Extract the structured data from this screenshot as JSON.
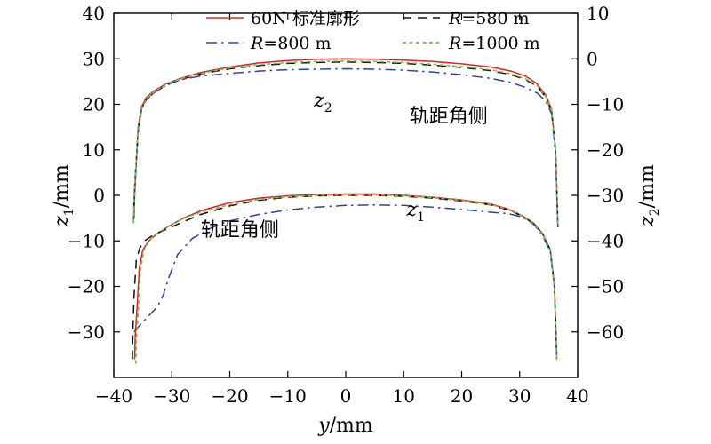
{
  "chart_data": {
    "type": "line",
    "xlabel": {
      "var": "y",
      "unit": "/mm"
    },
    "ylabel_left": {
      "var": "z",
      "sub": "1",
      "unit": "/mm"
    },
    "ylabel_right": {
      "var": "z",
      "sub": "2",
      "unit": "/mm"
    },
    "xlim": [
      -40,
      40
    ],
    "ylim_left": [
      -40,
      40
    ],
    "ylim_right": [
      -70,
      10
    ],
    "x_ticks": [
      "−40",
      "−30",
      "−20",
      "−10",
      "0",
      "10",
      "20",
      "30",
      "40"
    ],
    "y_left_ticks": [
      "−30",
      "−20",
      "−10",
      "0",
      "10",
      "20",
      "30",
      "40"
    ],
    "y_right_ticks": [
      "−60",
      "−50",
      "−40",
      "−30",
      "−20",
      "−10",
      "0",
      "10"
    ],
    "grid": false,
    "legend": {
      "placement": "top",
      "columns": 2,
      "entries": [
        {
          "name": "60N 标准廓形",
          "style": "solid",
          "color": "#d7262b"
        },
        {
          "pre": "",
          "var": "R",
          "post": "=580 m",
          "style": "dash",
          "color": "#111111"
        },
        {
          "pre": "",
          "var": "R",
          "post": "=800 m",
          "style": "dashdot",
          "color": "#2a47a0"
        },
        {
          "pre": "",
          "var": "R",
          "post": "=1000 m",
          "style": "dot",
          "color": "#6cc24a"
        }
      ]
    },
    "annotations": [
      {
        "text": "轨距角侧",
        "x": 11,
        "y": 16
      },
      {
        "text": "轨距角侧",
        "x": -25,
        "y": -9
      },
      {
        "var": "z",
        "sub": "2",
        "x": -5.5,
        "y": 19.5
      },
      {
        "var": "z",
        "sub": "1",
        "x": 10.5,
        "y": -4.5
      }
    ],
    "series": [
      {
        "name": "60N 标准廓形",
        "group": "z2",
        "axis": "right",
        "color": "#d7262b",
        "style": "solid",
        "x": [
          -36.5,
          -36.4,
          -36.2,
          -35.8,
          -35.2,
          -34.4,
          -33,
          -31,
          -28.5,
          -25,
          -20,
          -15,
          -10,
          -5,
          0,
          5,
          10,
          15,
          20,
          25,
          28.5,
          31,
          33,
          34.5,
          35.5,
          36.2,
          36.6
        ],
        "y": [
          -35.0,
          -30.0,
          -25.0,
          -15.0,
          -10.5,
          -8.5,
          -7.0,
          -5.5,
          -4.3,
          -3.0,
          -1.8,
          -0.9,
          -0.4,
          -0.1,
          0.0,
          -0.1,
          -0.3,
          -0.6,
          -1.1,
          -1.8,
          -2.7,
          -3.8,
          -5.5,
          -8.0,
          -11.0,
          -20.0,
          -37.0
        ]
      },
      {
        "name": "R=580 m",
        "group": "z2",
        "axis": "right",
        "color": "#111111",
        "style": "dash",
        "x": [
          -36.6,
          -36.5,
          -36.3,
          -35.8,
          -35.2,
          -34.4,
          -33,
          -31,
          -28.5,
          -25,
          -20,
          -15,
          -10,
          -5,
          0,
          5,
          10,
          15,
          20,
          25,
          28.5,
          31,
          33,
          34.5,
          35.5,
          36.2,
          36.6
        ],
        "y": [
          -36.0,
          -31.0,
          -26.0,
          -16.0,
          -11.0,
          -9.0,
          -7.4,
          -5.8,
          -4.6,
          -3.3,
          -2.2,
          -1.5,
          -1.0,
          -0.8,
          -0.7,
          -0.8,
          -1.0,
          -1.4,
          -1.9,
          -2.6,
          -3.5,
          -4.6,
          -6.0,
          -8.4,
          -11.5,
          -20.5,
          -37.0
        ]
      },
      {
        "name": "R=800 m",
        "group": "z2",
        "axis": "right",
        "color": "#2a47a0",
        "style": "dashdot",
        "x": [
          -36.6,
          -36.5,
          -36.3,
          -35.8,
          -35.2,
          -34.4,
          -33,
          -31,
          -28.5,
          -25,
          -20,
          -15,
          -10,
          -5,
          0,
          5,
          10,
          15,
          20,
          25,
          28.5,
          31,
          33,
          34.5,
          35.5,
          36.2,
          36.6
        ],
        "y": [
          -36.0,
          -31.0,
          -26.0,
          -16.0,
          -11.0,
          -9.0,
          -7.4,
          -5.8,
          -4.6,
          -3.8,
          -3.2,
          -2.7,
          -2.4,
          -2.3,
          -2.2,
          -2.3,
          -2.5,
          -2.9,
          -3.5,
          -4.3,
          -5.2,
          -6.3,
          -7.5,
          -9.3,
          -12.0,
          -21.0,
          -37.5
        ]
      },
      {
        "name": "R=1000 m",
        "group": "z2",
        "axis": "right",
        "color": "#6cc24a",
        "style": "dot",
        "x": [
          -36.6,
          -36.5,
          -36.3,
          -35.8,
          -35.2,
          -34.4,
          -33,
          -31,
          -28.5,
          -25,
          -20,
          -15,
          -10,
          -5,
          0,
          5,
          10,
          15,
          20,
          25,
          28.5,
          31,
          33,
          34.5,
          35.5,
          36.2,
          36.6
        ],
        "y": [
          -36.0,
          -31.0,
          -26.0,
          -16.0,
          -11.0,
          -8.8,
          -7.2,
          -5.6,
          -4.4,
          -3.2,
          -2.0,
          -1.3,
          -0.8,
          -0.6,
          -0.5,
          -0.6,
          -0.8,
          -1.2,
          -1.7,
          -2.4,
          -3.3,
          -4.4,
          -5.8,
          -8.3,
          -11.3,
          -20.3,
          -37.0
        ]
      },
      {
        "name": "60N 标准廓形",
        "group": "z1",
        "axis": "left",
        "color": "#d7262b",
        "style": "solid",
        "x": [
          -36.4,
          -36.3,
          -36.0,
          -35.6,
          -35.0,
          -34.0,
          -32.5,
          -30.5,
          -28,
          -25,
          -20,
          -15,
          -10,
          -5,
          0,
          5,
          10,
          15,
          20,
          25,
          28,
          30.5,
          32.5,
          34,
          35.3,
          36,
          36.4
        ],
        "y": [
          -36.0,
          -31.0,
          -25.0,
          -16.0,
          -12.0,
          -10.0,
          -8.4,
          -6.8,
          -5.0,
          -3.4,
          -1.6,
          -0.6,
          -0.1,
          0.2,
          0.3,
          0.3,
          0.0,
          -0.4,
          -1.0,
          -1.9,
          -3.0,
          -4.5,
          -6.2,
          -8.5,
          -12.0,
          -20.0,
          -36.0
        ]
      },
      {
        "name": "R=580 m",
        "group": "z1",
        "axis": "left",
        "color": "#111111",
        "style": "dash",
        "x": [
          -36.8,
          -36.7,
          -36.5,
          -36.1,
          -35.5,
          -34.5,
          -33.0,
          -30.5,
          -28,
          -25,
          -20,
          -15,
          -10,
          -5,
          0,
          5,
          10,
          15,
          20,
          25,
          28,
          30.5,
          32.5,
          34,
          35.3,
          36,
          36.4
        ],
        "y": [
          -36.0,
          -30.0,
          -22.0,
          -14.0,
          -11.5,
          -9.8,
          -8.6,
          -7.2,
          -5.8,
          -4.2,
          -2.3,
          -1.1,
          -0.4,
          -0.1,
          0.0,
          0.0,
          -0.2,
          -0.6,
          -1.2,
          -2.1,
          -3.2,
          -4.6,
          -6.3,
          -8.6,
          -12.0,
          -20.0,
          -35.0
        ]
      },
      {
        "name": "R=800 m",
        "group": "z1",
        "axis": "left",
        "color": "#2a47a0",
        "style": "dashdot",
        "x": [
          -36.5,
          -35.5,
          -34.0,
          -32.5,
          -31.5,
          -30.5,
          -29,
          -26.5,
          -23,
          -20,
          -15,
          -10,
          -5,
          0,
          5,
          10,
          15,
          20,
          25,
          28,
          30.5,
          32.5,
          34,
          35.3,
          36,
          36.4
        ],
        "y": [
          -30.0,
          -28.5,
          -26.5,
          -24.5,
          -22.0,
          -18.0,
          -13.0,
          -9.5,
          -7.0,
          -5.6,
          -4.2,
          -3.2,
          -2.6,
          -2.2,
          -2.1,
          -2.2,
          -2.6,
          -3.1,
          -3.7,
          -4.0,
          -4.8,
          -6.5,
          -9.0,
          -12.5,
          -20.5,
          -36.0
        ]
      },
      {
        "name": "R=1000 m",
        "group": "z1",
        "axis": "left",
        "color": "#6cc24a",
        "style": "dot",
        "x": [
          -36.2,
          -36.1,
          -35.8,
          -35.4,
          -34.8,
          -33.8,
          -32.3,
          -30.3,
          -28,
          -25,
          -20,
          -15,
          -10,
          -5,
          0,
          5,
          10,
          15,
          20,
          25,
          28,
          30.5,
          32.5,
          34,
          35.3,
          36,
          36.4
        ],
        "y": [
          -37.0,
          -32.0,
          -26.0,
          -16.5,
          -12.0,
          -9.8,
          -8.2,
          -6.6,
          -5.1,
          -3.7,
          -2.0,
          -0.9,
          -0.3,
          0.0,
          0.1,
          0.1,
          -0.1,
          -0.5,
          -1.1,
          -2.0,
          -3.1,
          -4.6,
          -6.4,
          -8.7,
          -12.2,
          -20.2,
          -36.5
        ]
      }
    ]
  }
}
